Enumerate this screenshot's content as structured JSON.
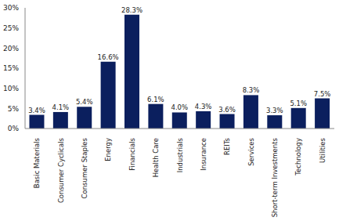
{
  "chart_data": {
    "type": "bar",
    "categories": [
      "Basic Materials",
      "Consumer Cyclicals",
      "Consumer Staples",
      "Energy",
      "Financials",
      "Health Care",
      "Industrials",
      "Insurance",
      "REITs",
      "Services",
      "Short-term Investments",
      "Technology",
      "Utilities"
    ],
    "values": [
      3.4,
      4.1,
      5.4,
      16.6,
      28.3,
      6.1,
      4.0,
      4.3,
      3.6,
      8.3,
      3.3,
      5.1,
      7.5
    ],
    "value_labels": [
      "3.4%",
      "4.1%",
      "5.4%",
      "16.6%",
      "28.3%",
      "6.1%",
      "4.0%",
      "4.3%",
      "3.6%",
      "8.3%",
      "3.3%",
      "5.1%",
      "7.5%"
    ],
    "color": "#0b1f5e",
    "ylim": [
      0,
      30
    ],
    "yticks": [
      {
        "value": 0,
        "label": "0%"
      },
      {
        "value": 5,
        "label": "5%"
      },
      {
        "value": 10,
        "label": "10%"
      },
      {
        "value": 15,
        "label": "15%"
      },
      {
        "value": 20,
        "label": "20%"
      },
      {
        "value": 25,
        "label": "25%"
      },
      {
        "value": 30,
        "label": "30%"
      }
    ],
    "grid": false,
    "data_labels": true
  }
}
